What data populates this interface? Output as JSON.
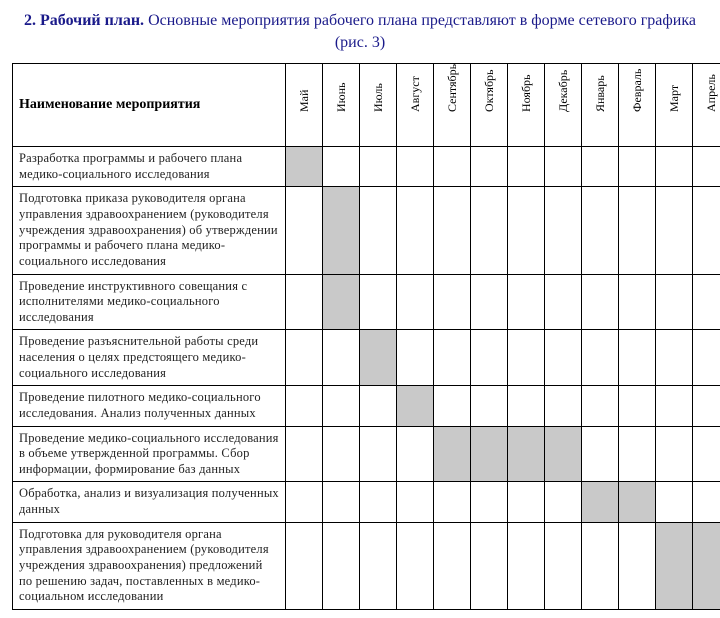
{
  "title_bold": "2. Рабочий план.",
  "title_rest": " Основные мероприятия рабочего плана представляют в форме сетевого графика (рис. 3)",
  "header_name": "Наименование мероприятия",
  "months": [
    "Май",
    "Июнь",
    "Июль",
    "Август",
    "Сентябрь",
    "Октябрь",
    "Ноябрь",
    "Декабрь",
    "Январь",
    "Февраль",
    "Март",
    "Апрель"
  ],
  "fill_color": "#c9c9c9",
  "rows": [
    {
      "label": "Разработка программы и рабочего плана медико-социального исследования",
      "fill": [
        1,
        0,
        0,
        0,
        0,
        0,
        0,
        0,
        0,
        0,
        0,
        0
      ]
    },
    {
      "label": "Подготовка приказа руководителя органа управления здравоохранением (руководителя учреждения здравоохранения) об утверждении программы и рабочего плана медико-социального исследования",
      "fill": [
        0,
        1,
        0,
        0,
        0,
        0,
        0,
        0,
        0,
        0,
        0,
        0
      ]
    },
    {
      "label": "Проведение инструктивного совещания с исполнителями медико-социального исследования",
      "fill": [
        0,
        1,
        0,
        0,
        0,
        0,
        0,
        0,
        0,
        0,
        0,
        0
      ]
    },
    {
      "label": "Проведение разъяснительной работы среди населения о целях предстоящего медико-социального исследования",
      "fill": [
        0,
        0,
        1,
        0,
        0,
        0,
        0,
        0,
        0,
        0,
        0,
        0
      ]
    },
    {
      "label": "Проведение пилотного медико-социального исследования. Анализ полученных данных",
      "fill": [
        0,
        0,
        0,
        1,
        0,
        0,
        0,
        0,
        0,
        0,
        0,
        0
      ]
    },
    {
      "label": "Проведение медико-социального исследования в объеме утвержденной программы. Сбор информации, формирование баз данных",
      "fill": [
        0,
        0,
        0,
        0,
        1,
        1,
        1,
        1,
        0,
        0,
        0,
        0
      ]
    },
    {
      "label": "Обработка, анализ и визуализация полученных данных",
      "fill": [
        0,
        0,
        0,
        0,
        0,
        0,
        0,
        0,
        1,
        1,
        0,
        0
      ]
    },
    {
      "label": "Подготовка для руководителя органа управления здравоохранением (руководителя учреждения здравоохранения) предложений по решению задач, поставленных в медико-социальном исследовании",
      "fill": [
        0,
        0,
        0,
        0,
        0,
        0,
        0,
        0,
        0,
        0,
        1,
        1
      ]
    }
  ]
}
